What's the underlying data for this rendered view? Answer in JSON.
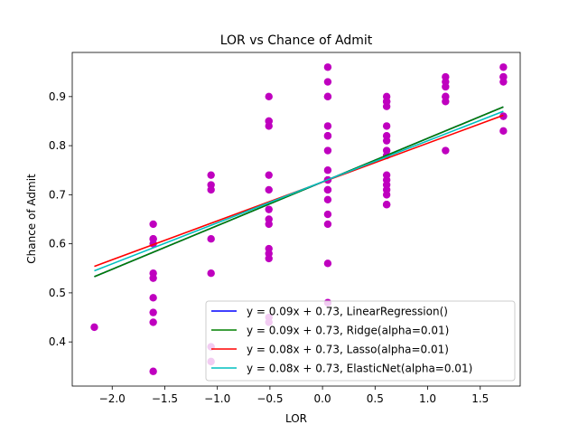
{
  "chart_data": {
    "type": "scatter",
    "title": "LOR  vs Chance of Admit",
    "xlabel": "LOR",
    "ylabel": "Chance of Admit",
    "xlim": [
      -2.38,
      1.88
    ],
    "ylim": [
      0.31,
      0.99
    ],
    "xticks": [
      -2.0,
      -1.5,
      -1.0,
      -0.5,
      0.0,
      0.5,
      1.0,
      1.5
    ],
    "xtick_labels": [
      "−2.0",
      "−1.5",
      "−1.0",
      "−0.5",
      "0.0",
      "0.5",
      "1.0",
      "1.5"
    ],
    "yticks": [
      0.4,
      0.5,
      0.6,
      0.7,
      0.8,
      0.9
    ],
    "ytick_labels": [
      "0.4",
      "0.5",
      "0.6",
      "0.7",
      "0.8",
      "0.9"
    ],
    "grid": false,
    "legend_position": "lower-right",
    "points": {
      "color": "#bf00bf",
      "x": [
        -2.17,
        -1.61,
        -1.61,
        -1.61,
        -1.61,
        -1.61,
        -1.61,
        -1.61,
        -1.61,
        -1.61,
        -1.61,
        -1.06,
        -1.06,
        -1.06,
        -1.06,
        -1.06,
        -1.06,
        -1.06,
        -0.51,
        -0.51,
        -0.51,
        -0.51,
        -0.51,
        -0.51,
        -0.51,
        -0.51,
        -0.51,
        -0.51,
        -0.51,
        -0.51,
        -0.51,
        -0.51,
        0.05,
        0.05,
        0.05,
        0.05,
        0.05,
        0.05,
        0.05,
        0.05,
        0.05,
        0.05,
        0.05,
        0.05,
        0.05,
        0.05,
        0.05,
        0.05,
        0.05,
        0.05,
        0.61,
        0.61,
        0.61,
        0.61,
        0.61,
        0.61,
        0.61,
        0.61,
        0.61,
        0.61,
        0.61,
        0.61,
        0.61,
        0.61,
        0.61,
        0.61,
        1.17,
        1.17,
        1.17,
        1.17,
        1.17,
        1.17,
        1.17,
        1.72,
        1.72,
        1.72,
        1.72,
        1.72,
        1.72,
        1.72
      ],
      "y": [
        0.43,
        0.64,
        0.61,
        0.6,
        0.54,
        0.53,
        0.49,
        0.46,
        0.44,
        0.34,
        0.61,
        0.74,
        0.72,
        0.71,
        0.61,
        0.54,
        0.39,
        0.36,
        0.9,
        0.85,
        0.84,
        0.74,
        0.71,
        0.67,
        0.65,
        0.64,
        0.59,
        0.58,
        0.57,
        0.45,
        0.44,
        0.85,
        0.96,
        0.93,
        0.9,
        0.84,
        0.82,
        0.79,
        0.75,
        0.73,
        0.71,
        0.69,
        0.66,
        0.64,
        0.56,
        0.48,
        0.9,
        0.82,
        0.73,
        0.71,
        0.9,
        0.89,
        0.88,
        0.84,
        0.82,
        0.81,
        0.79,
        0.78,
        0.74,
        0.73,
        0.72,
        0.71,
        0.7,
        0.68,
        0.68,
        0.89,
        0.94,
        0.92,
        0.9,
        0.89,
        0.79,
        0.93,
        0.9,
        0.96,
        0.94,
        0.93,
        0.86,
        0.86,
        0.83,
        0.94
      ]
    },
    "series": [
      {
        "name": "y = 0.09x + 0.73, LinearRegression()",
        "color": "#0000ff",
        "x": [
          -2.17,
          1.72
        ],
        "y": [
          0.533,
          0.879
        ]
      },
      {
        "name": "y = 0.09x + 0.73, Ridge(alpha=0.01)",
        "color": "#008000",
        "x": [
          -2.17,
          1.72
        ],
        "y": [
          0.533,
          0.879
        ]
      },
      {
        "name": "y = 0.08x + 0.73, Lasso(alpha=0.01)",
        "color": "#ff0000",
        "x": [
          -2.17,
          1.72
        ],
        "y": [
          0.554,
          0.862
        ]
      },
      {
        "name": "y = 0.08x + 0.73, ElasticNet(alpha=0.01)",
        "color": "#00bfbf",
        "x": [
          -2.17,
          1.72
        ],
        "y": [
          0.545,
          0.87
        ]
      }
    ]
  }
}
